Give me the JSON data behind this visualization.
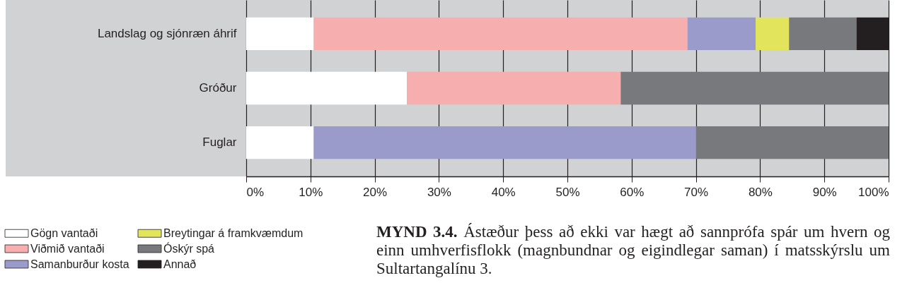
{
  "chart_data": {
    "type": "bar",
    "orientation": "horizontal",
    "stacked": true,
    "categories": [
      "Landslag og sjónræn áhrif",
      "Gróður",
      "Fuglar"
    ],
    "series": [
      {
        "name": "Gögn vantaði",
        "color": "#ffffff",
        "values": [
          10.5,
          25,
          10.5
        ]
      },
      {
        "name": "Viðmið vantaði",
        "color": "#f7aeae",
        "values": [
          58.2,
          33.3,
          null
        ]
      },
      {
        "name": "Samanburður kosta",
        "color": "#9b9bcb",
        "values": [
          10.6,
          null,
          59.5
        ]
      },
      {
        "name": "Breytingar á framkvæmdum",
        "color": "#e2e55c",
        "values": [
          5.2,
          null,
          null
        ]
      },
      {
        "name": "Óskýr spá",
        "color": "#78797c",
        "values": [
          10.5,
          41.7,
          30
        ]
      },
      {
        "name": "Annað",
        "color": "#231f20",
        "values": [
          5,
          null,
          null
        ]
      }
    ],
    "xlim": [
      0,
      100
    ],
    "xticks": [
      {
        "value": 0,
        "label": "0%"
      },
      {
        "value": 10,
        "label": "10%"
      },
      {
        "value": 20,
        "label": "20%"
      },
      {
        "value": 30,
        "label": "30%"
      },
      {
        "value": 40,
        "label": "40%"
      },
      {
        "value": 50,
        "label": "50%"
      },
      {
        "value": 60,
        "label": "60%"
      },
      {
        "value": 70,
        "label": "70%"
      },
      {
        "value": 80,
        "label": "80%"
      },
      {
        "value": 90,
        "label": "90%"
      },
      {
        "value": 100,
        "label": "100%"
      }
    ],
    "grid": "x",
    "legend": "bottom left",
    "annotations": [
      "MYND 3.4. Ástæður þess að ekki var hægt að sannprófa spár um hvern og einn umhverfisflokk (magnbundnar og eigindlegar saman) í matsskýrslu um Sultartangalínu 3."
    ]
  }
}
